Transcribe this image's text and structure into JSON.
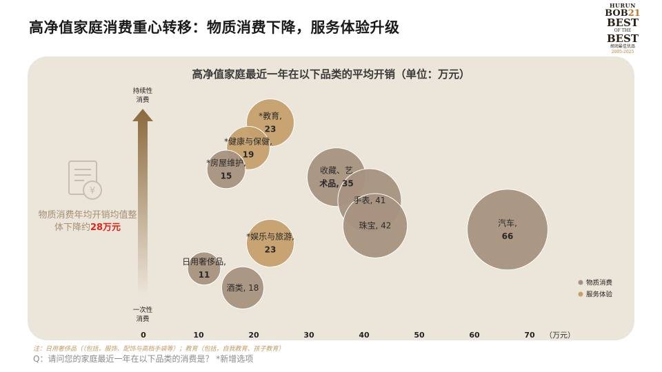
{
  "page": {
    "title": "高净值家庭消费重心转移：物质消费下降，服务体验升级",
    "logo": {
      "line1": "HURUN",
      "line2a": "BOB",
      "line2b": "21",
      "line3": "BEST",
      "line4": "OF THE",
      "line5": "BEST",
      "line6": "胡润最佳优品",
      "line7": "2005-2025"
    },
    "callout_prefix": "物质消费年均开销均值整体下降约",
    "callout_highlight": "28万元",
    "footnote": "注：日用奢侈品（（包括，服饰、配饰与高档手袋等）；教育（包括，自我教育、孩子教育）",
    "question": "Q：请问您的家庭最近一年在以下品类的消费是？ *新增选项"
  },
  "chart_data": {
    "type": "scatter",
    "title": "高净值家庭最近一年在以下品类的平均开销（单位：万元）",
    "xlabel": "（万元）",
    "x_ticks": [
      0,
      10,
      20,
      30,
      40,
      50,
      60,
      70
    ],
    "xlim": [
      0,
      70
    ],
    "y_axis_top_label": [
      "持续性",
      "消费"
    ],
    "y_axis_bottom_label": [
      "一次性",
      "消费"
    ],
    "legend": [
      {
        "name": "物质消费",
        "color": "#a69280"
      },
      {
        "name": "服务体验",
        "color": "#c5a06d"
      }
    ],
    "legend_position": "bottom-right",
    "points": [
      {
        "label": [
          "*教育,",
          "23"
        ],
        "x": 23,
        "y": 0.9,
        "size": 23,
        "group": "服务体验"
      },
      {
        "label": [
          "*健康与保健,",
          "19"
        ],
        "x": 19,
        "y": 0.77,
        "size": 19,
        "group": "服务体验"
      },
      {
        "label": [
          "*房屋维护,",
          "15"
        ],
        "x": 15,
        "y": 0.66,
        "size": 15,
        "group": "物质消费"
      },
      {
        "label": [
          "收藏、艺",
          "术品, 35"
        ],
        "x": 35,
        "y": 0.62,
        "size": 35,
        "group": "物质消费"
      },
      {
        "label": [
          "手表, 41"
        ],
        "x": 41,
        "y": 0.5,
        "size": 41,
        "group": "物质消费"
      },
      {
        "label": [
          "珠宝, 42"
        ],
        "x": 42,
        "y": 0.37,
        "size": 42,
        "group": "物质消费"
      },
      {
        "label": [
          "汽车,",
          "66"
        ],
        "x": 66,
        "y": 0.35,
        "size": 66,
        "group": "物质消费"
      },
      {
        "label": [
          "*娱乐与旅游,",
          "23"
        ],
        "x": 23,
        "y": 0.28,
        "size": 23,
        "group": "服务体验"
      },
      {
        "label": [
          "日用奢侈品,",
          "11"
        ],
        "x": 11,
        "y": 0.15,
        "size": 11,
        "group": "物质消费"
      },
      {
        "label": [
          "酒类, 18"
        ],
        "x": 18,
        "y": 0.05,
        "size": 18,
        "group": "物质消费"
      }
    ]
  }
}
